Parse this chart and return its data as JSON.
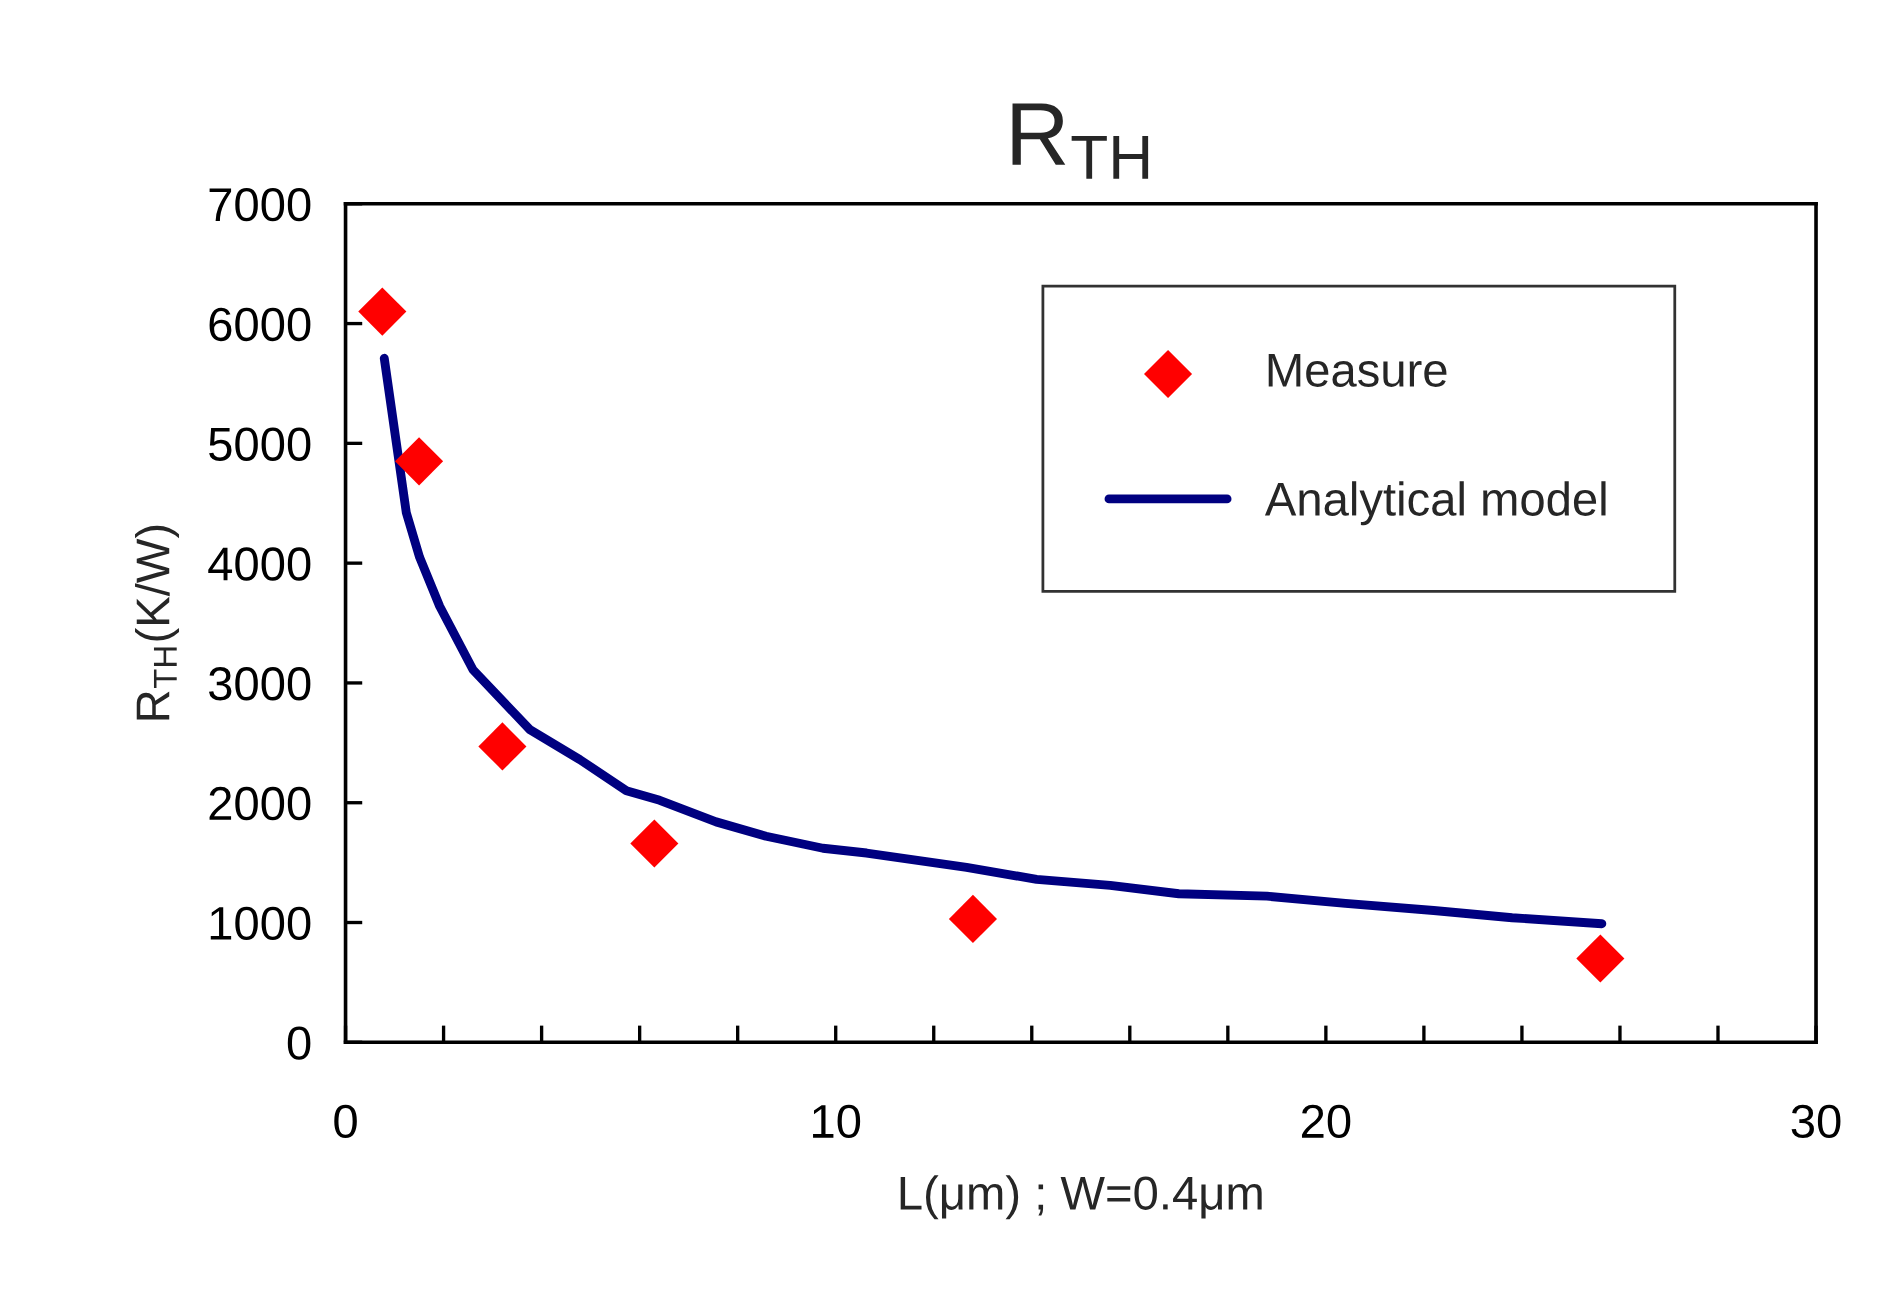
{
  "chart_data": {
    "type": "scatter",
    "title": "R$_{TH}$",
    "xlabel": "L(μm) ; W=0.4μm",
    "ylabel": "R$_{TH}$(K/W)",
    "xlim": [
      0,
      30
    ],
    "ylim": [
      0,
      7000
    ],
    "xticks": [
      0,
      {
        "value": 2,
        "label": null
      },
      {
        "value": 4,
        "label": null
      },
      {
        "value": 6,
        "label": null
      },
      {
        "value": 8,
        "label": null
      },
      10,
      {
        "value": 12,
        "label": null
      },
      {
        "value": 14,
        "label": null
      },
      {
        "value": 16,
        "label": null
      },
      {
        "value": 18,
        "label": null
      },
      20,
      {
        "value": 22,
        "label": null
      },
      {
        "value": 24,
        "label": null
      },
      {
        "value": 26,
        "label": null
      },
      {
        "value": 28,
        "label": null
      },
      30
    ],
    "yticks": [
      0,
      1000,
      2000,
      3000,
      4000,
      5000,
      6000,
      7000
    ],
    "grid": false,
    "legend": "top right",
    "series": [
      {
        "name": "Measure",
        "marker": "diamond",
        "color": "#ff0000",
        "x": [
          0.75,
          1.5,
          3.2,
          6.3,
          12.8,
          25.6
        ],
        "values": [
          6100,
          4850,
          2470,
          1660,
          1030,
          700
        ]
      },
      {
        "name": "Analytical model",
        "type": "line",
        "marker": "none",
        "line_style": "solid",
        "color": "#000080",
        "x": [
          0.79,
          1.24,
          1.51,
          1.92,
          2.6,
          3.76,
          4.78,
          5.73,
          6.41,
          7.56,
          8.58,
          9.74,
          10.63,
          12.67,
          14.1,
          15.6,
          17.0,
          18.8,
          20.4,
          22.2,
          23.8,
          25.63
        ],
        "values": [
          5710,
          4420,
          4050,
          3640,
          3110,
          2610,
          2360,
          2100,
          2020,
          1840,
          1720,
          1620,
          1580,
          1460,
          1360,
          1310,
          1240,
          1220,
          1160,
          1100,
          1040,
          990
        ]
      }
    ]
  }
}
